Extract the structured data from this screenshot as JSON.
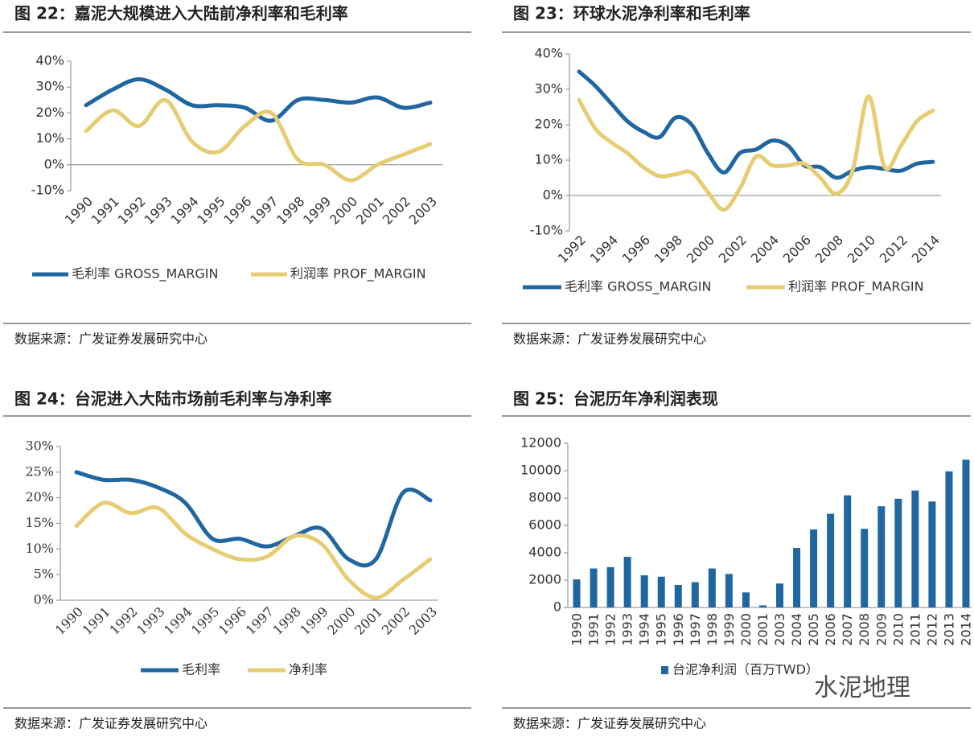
{
  "chart_data": [
    {
      "type": "line",
      "title": "图 22：嘉泥大规模进入大陆前净利率和毛利率",
      "source": "数据来源：广发证券发展研究中心",
      "categories": [
        "1990",
        "1991",
        "1992",
        "1993",
        "1994",
        "1995",
        "1996",
        "1997",
        "1998",
        "1999",
        "2000",
        "2001",
        "2002",
        "2003"
      ],
      "series": [
        {
          "name": "毛利率 GROSS_MARGIN",
          "color": "#2066a0",
          "values": [
            23,
            29,
            33,
            29,
            23,
            23,
            22,
            17,
            25,
            25,
            24,
            26,
            22,
            24
          ]
        },
        {
          "name": "利润率 PROF_MARGIN",
          "color": "#e6cd74",
          "values": [
            13,
            21,
            15,
            25,
            9,
            5,
            15,
            20,
            2,
            0,
            -6,
            0,
            4,
            8
          ]
        }
      ],
      "ylim": [
        -10,
        40
      ],
      "yticks": [
        {
          "value": -10,
          "label": "-10%"
        },
        {
          "value": 0,
          "label": "0%"
        },
        {
          "value": 10,
          "label": "10%"
        },
        {
          "value": 20,
          "label": "20%"
        },
        {
          "value": 30,
          "label": "30%"
        },
        {
          "value": 40,
          "label": "40%"
        }
      ],
      "grid": false
    },
    {
      "type": "line",
      "title": "图 23：环球水泥净利率和毛利率",
      "source": "数据来源：广发证券发展研究中心",
      "categories": [
        "1992",
        null,
        "1994",
        null,
        "1996",
        null,
        "1998",
        null,
        "2000",
        null,
        "2002",
        null,
        "2004",
        null,
        "2006",
        null,
        "2008",
        null,
        "2010",
        null,
        "2012",
        null,
        "2014"
      ],
      "series": [
        {
          "name": "毛利率 GROSS_MARGIN",
          "color": "#2066a0",
          "values": [
            35,
            31,
            26,
            21,
            18,
            16.5,
            22,
            20,
            12,
            6.5,
            12,
            13,
            15.5,
            14,
            8.5,
            8,
            5,
            7,
            8,
            7.5,
            7,
            9,
            9.5
          ]
        },
        {
          "name": "利润率 PROF_MARGIN",
          "color": "#e6cd74",
          "values": [
            27,
            19,
            15,
            12,
            8,
            5.5,
            6,
            6.5,
            1,
            -4,
            2,
            11,
            8.5,
            8.5,
            9,
            5,
            0.5,
            7,
            28,
            8,
            14,
            21,
            24
          ]
        }
      ],
      "ylim": [
        -10,
        40
      ],
      "yticks": [
        {
          "value": -10,
          "label": "-10%"
        },
        {
          "value": 0,
          "label": "0%"
        },
        {
          "value": 10,
          "label": "10%"
        },
        {
          "value": 20,
          "label": "20%"
        },
        {
          "value": 30,
          "label": "30%"
        },
        {
          "value": 40,
          "label": "40%"
        }
      ],
      "grid": false
    },
    {
      "type": "line",
      "title": "图 24：台泥进入大陆市场前毛利率与净利率",
      "source": "数据来源：广发证券发展研究中心",
      "categories": [
        "1990",
        "1991",
        "1992",
        "1993",
        "1994",
        "1995",
        "1996",
        "1997",
        "1998",
        "1999",
        "2000",
        "2001",
        "2002",
        "2003"
      ],
      "series": [
        {
          "name": "毛利率",
          "color": "#2066a0",
          "values": [
            25,
            23.5,
            23.5,
            22,
            19,
            12,
            12,
            10.5,
            12.5,
            14,
            8,
            8,
            21,
            19.5
          ]
        },
        {
          "name": "净利率",
          "color": "#e6cd74",
          "values": [
            14.5,
            19,
            17,
            18,
            13,
            10,
            8,
            8.5,
            12.5,
            11,
            4,
            0.5,
            4,
            8
          ]
        }
      ],
      "ylim": [
        0,
        30
      ],
      "yticks": [
        {
          "value": 0,
          "label": "0%"
        },
        {
          "value": 5,
          "label": "5%"
        },
        {
          "value": 10,
          "label": "10%"
        },
        {
          "value": 15,
          "label": "15%"
        },
        {
          "value": 20,
          "label": "20%"
        },
        {
          "value": 25,
          "label": "25%"
        },
        {
          "value": 30,
          "label": "30%"
        }
      ],
      "grid": false
    },
    {
      "type": "bar",
      "title": "图 25：台泥历年净利润表现",
      "source": "数据来源：广发证券发展研究中心",
      "categories": [
        "1990",
        "1991",
        "1992",
        "1993",
        "1994",
        "1995",
        "1996",
        "1997",
        "1998",
        "1999",
        "2000",
        "2001",
        "2003",
        "2004",
        "2005",
        "2006",
        "2007",
        "2008",
        "2009",
        "2010",
        "2011",
        "2012",
        "2013",
        "2014"
      ],
      "series": [
        {
          "name": "台泥净利润（百万TWD）",
          "color": "#2066a0",
          "values": [
            2050,
            2850,
            2950,
            3700,
            2350,
            2250,
            1650,
            1850,
            2850,
            2450,
            1100,
            150,
            1750,
            4350,
            5700,
            6850,
            8200,
            5750,
            7400,
            7950,
            8550,
            7750,
            9950,
            10800
          ]
        }
      ],
      "ylim": [
        0,
        12000
      ],
      "yticks": [
        0,
        2000,
        4000,
        6000,
        8000,
        10000,
        12000
      ],
      "grid": false,
      "watermark": "水泥地理"
    }
  ]
}
